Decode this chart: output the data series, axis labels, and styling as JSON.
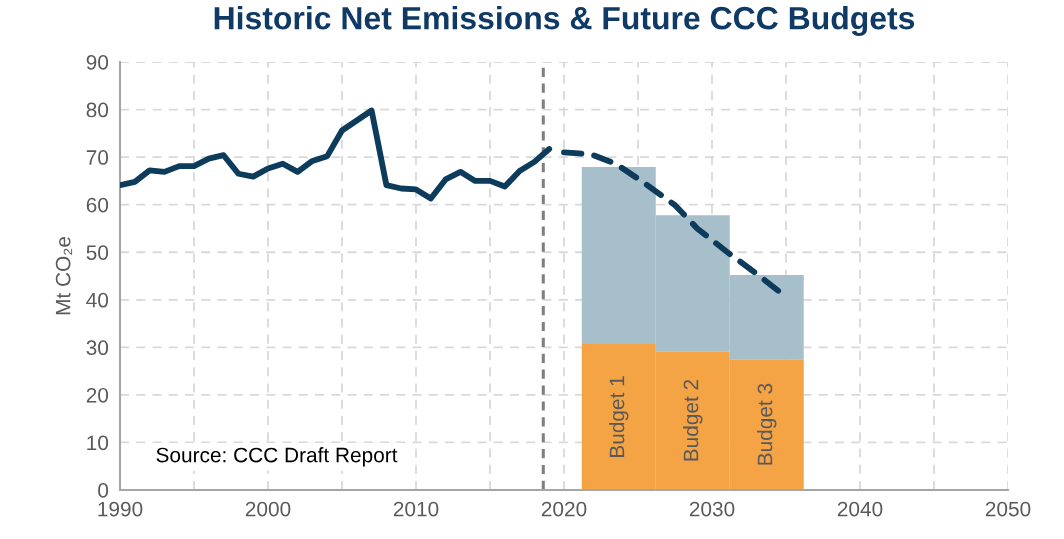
{
  "chart_data": {
    "type": "bar",
    "title": "Historic Net Emissions & Future CCC Budgets",
    "ylabel": "Mt CO₂e",
    "stacked": true,
    "grid": true,
    "legend": false,
    "x": [
      2023.7,
      2028.7,
      2033.7
    ],
    "series": [
      {
        "color": "#f5a445",
        "values": [
          30.7,
          29.2,
          27.5
        ]
      },
      {
        "color": "#a7bfca",
        "values": [
          37.2,
          28.6,
          17.7
        ]
      },
      {
        "type": "line",
        "color": "#0d3b5c",
        "line_style": "solid",
        "x": [
          1990,
          1991,
          1992,
          1993,
          1994,
          1995,
          1996,
          1997,
          1998,
          1999,
          2000,
          2001,
          2002,
          2003,
          2004,
          2005,
          2006,
          2007,
          2008,
          2009,
          2010,
          2011,
          2012,
          2013,
          2014,
          2015,
          2016,
          2017,
          2018,
          2019
        ],
        "values": [
          64.1,
          64.8,
          67.2,
          66.9,
          68.1,
          68.1,
          69.7,
          70.4,
          66.5,
          65.9,
          67.6,
          68.6,
          66.9,
          69.2,
          70.2,
          75.6,
          77.7,
          79.8,
          64.1,
          63.4,
          63.2,
          61.3,
          65.3,
          66.9,
          65.0,
          65.0,
          63.8,
          67.1,
          69.0,
          71.7
        ]
      },
      {
        "type": "line",
        "color": "#0d3b5c",
        "line_style": "dashed",
        "x": [
          2020,
          2021,
          2022,
          2023.5,
          2025.5,
          2027.5,
          2029,
          2031,
          2033,
          2035
        ],
        "values": [
          71.0,
          70.8,
          70.4,
          68.6,
          64.4,
          59.9,
          55.0,
          50.1,
          45.5,
          40.6
        ]
      }
    ],
    "ref_lines": [
      {
        "axis": "x",
        "value": 2018.6,
        "color": "#7f7f7f",
        "line_style": "dashed"
      }
    ],
    "annotations": [
      "Budget 1",
      "Budget 2",
      "Budget 3",
      "Source: CCC Draft Report"
    ],
    "xlim": [
      1990,
      2050
    ],
    "xticks": [
      1990,
      {
        "value": 1995,
        "label": null
      },
      2000,
      {
        "value": 2005,
        "label": null
      },
      2010,
      {
        "value": 2015,
        "label": null
      },
      2020,
      {
        "value": 2025,
        "label": null
      },
      2030,
      {
        "value": 2035,
        "label": null
      },
      2040,
      {
        "value": 2045,
        "label": null
      },
      2050
    ],
    "ylim": [
      0,
      90
    ],
    "yticks": [
      0,
      10,
      20,
      30,
      40,
      50,
      60,
      70,
      80,
      90
    ]
  }
}
